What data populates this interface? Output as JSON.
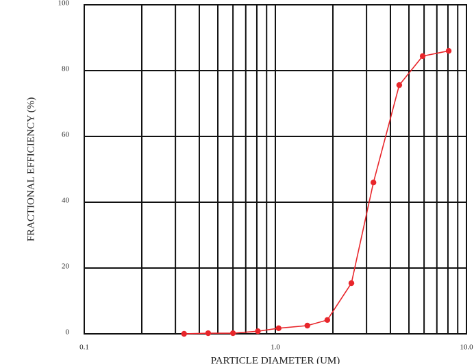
{
  "chart_data": {
    "type": "line",
    "x_label": "PARTICLE DIAMETER (UM)",
    "y_label": "FRACTIONAL EFFICIENCY (%)",
    "xscale": "log",
    "xlim": [
      0.1,
      10
    ],
    "ylim": [
      0,
      100
    ],
    "xticks": [
      0.1,
      {
        "value": 1,
        "label": "1.0"
      },
      {
        "value": 10,
        "label": "10.0"
      }
    ],
    "yticks": [
      0,
      20,
      40,
      60,
      80,
      100
    ],
    "grid": true,
    "minor_grid": true,
    "series": [
      {
        "color": "#e8262b",
        "x": [
          0.333,
          0.445,
          0.6,
          0.81,
          1.04,
          1.47,
          1.87,
          2.5,
          3.26,
          4.45,
          5.9,
          8.07
        ],
        "values": [
          0,
          0.2,
          0.2,
          0.8,
          1.7,
          2.5,
          4.2,
          15.4,
          46,
          75.6,
          84.4,
          86
        ]
      }
    ]
  }
}
